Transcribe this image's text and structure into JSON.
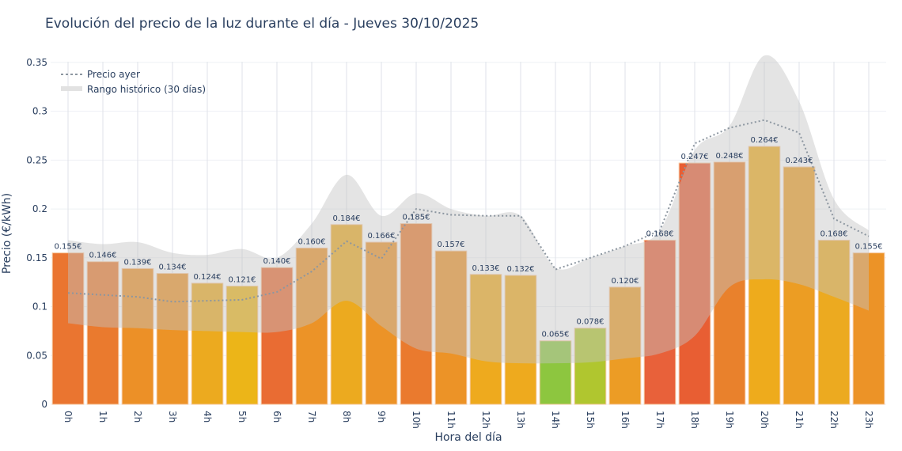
{
  "chart_data": {
    "type": "bar",
    "title": "Evolución del precio de la luz durante el día - Jueves 30/10/2025",
    "xlabel": "Hora del día",
    "ylabel": "Precio (€/kWh)",
    "ylim": [
      0,
      0.375
    ],
    "yticks": [
      0,
      0.05,
      0.1,
      0.15,
      0.2,
      0.25,
      0.3,
      0.35
    ],
    "ytick_labels": [
      "0",
      "0.05",
      "0.1",
      "0.15",
      "0.2",
      "0.25",
      "0.3",
      "0.35"
    ],
    "grid": true,
    "legend_position": "top-left",
    "categories": [
      "0h",
      "1h",
      "2h",
      "3h",
      "4h",
      "5h",
      "6h",
      "7h",
      "8h",
      "9h",
      "10h",
      "11h",
      "12h",
      "13h",
      "14h",
      "15h",
      "16h",
      "17h",
      "18h",
      "19h",
      "20h",
      "21h",
      "22h",
      "23h"
    ],
    "values": [
      0.155,
      0.146,
      0.139,
      0.134,
      0.124,
      0.121,
      0.14,
      0.16,
      0.184,
      0.166,
      0.185,
      0.157,
      0.133,
      0.132,
      0.065,
      0.078,
      0.12,
      0.168,
      0.247,
      0.248,
      0.264,
      0.243,
      0.168,
      0.155
    ],
    "value_labels": [
      "0.155€",
      "0.146€",
      "0.139€",
      "0.134€",
      "0.124€",
      "0.121€",
      "0.140€",
      "0.160€",
      "0.184€",
      "0.166€",
      "0.185€",
      "0.157€",
      "0.133€",
      "0.132€",
      "0.065€",
      "0.078€",
      "0.120€",
      "0.168€",
      "0.247€",
      "0.248€",
      "0.264€",
      "0.243€",
      "0.168€",
      "0.155€"
    ],
    "bar_colors": [
      "#ea7530",
      "#ea7a2e",
      "#ec9027",
      "#ec9327",
      "#ecaa1f",
      "#ecb518",
      "#e96c33",
      "#ec9327",
      "#ecaa1f",
      "#ec9327",
      "#ea7a2e",
      "#ec9327",
      "#eeaa1e",
      "#eeaa1e",
      "#8dc63f",
      "#b0c62f",
      "#ec9c25",
      "#e8613a",
      "#e85e33",
      "#e9812c",
      "#eeab1c",
      "#ec9d23",
      "#ecaa20",
      "#ec9327"
    ],
    "series": [
      {
        "name": "Precio ayer",
        "style": "dotted-line",
        "color": "#8c96a0",
        "values": [
          0.114,
          0.112,
          0.11,
          0.105,
          0.106,
          0.107,
          0.115,
          0.136,
          0.167,
          0.149,
          0.2,
          0.194,
          0.193,
          0.193,
          0.138,
          0.15,
          0.162,
          0.178,
          0.267,
          0.283,
          0.291,
          0.278,
          0.19,
          0.172
        ]
      },
      {
        "name": "Rango histórico (30 días)",
        "style": "band",
        "color": "#c8c8c8",
        "min": [
          0.083,
          0.079,
          0.078,
          0.076,
          0.075,
          0.074,
          0.074,
          0.083,
          0.106,
          0.08,
          0.057,
          0.052,
          0.044,
          0.042,
          0.042,
          0.043,
          0.047,
          0.052,
          0.07,
          0.12,
          0.128,
          0.123,
          0.11,
          0.096
        ],
        "max": [
          0.168,
          0.164,
          0.166,
          0.155,
          0.153,
          0.159,
          0.15,
          0.185,
          0.235,
          0.193,
          0.216,
          0.2,
          0.193,
          0.193,
          0.14,
          0.15,
          0.162,
          0.178,
          0.26,
          0.285,
          0.357,
          0.31,
          0.21,
          0.178
        ]
      }
    ]
  }
}
